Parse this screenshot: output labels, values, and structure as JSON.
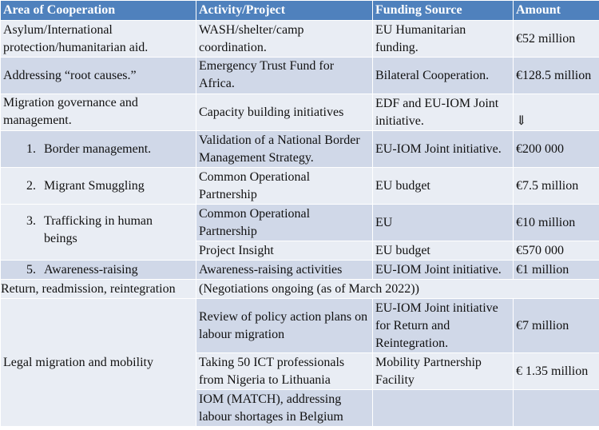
{
  "table": {
    "headers": [
      "Area of Cooperation",
      "Activity/Project",
      "Funding Source",
      "Amount"
    ],
    "rows": [
      {
        "area": "Asylum/International protection/humanitarian aid.",
        "activity": "WASH/shelter/camp coordination.",
        "funding": "EU Humanitarian funding.",
        "amount": "€52 million"
      },
      {
        "area": "Addressing “root causes.”",
        "activity": "Emergency Trust Fund for Africa.",
        "funding": "Bilateral Cooperation.",
        "amount": "€128.5 million"
      },
      {
        "area": "Migration governance and management.",
        "activity": "Capacity building initiatives",
        "funding": "EDF and EU-IOM Joint initiative.",
        "amount": "⇓"
      },
      {
        "num": "1.",
        "area": "Border management.",
        "activity": "Validation of a National Border Management Strategy.",
        "funding": "EU-IOM Joint initiative.",
        "amount": "€200 000"
      },
      {
        "num": "2.",
        "area": "Migrant Smuggling",
        "activity": "Common Operational Partnership",
        "funding": "EU budget",
        "amount": "€7.5 million"
      },
      {
        "num": "3.",
        "area": "Trafficking in human beings",
        "activity": "Common Operational Partnership",
        "funding": "EU",
        "amount": "€10 million"
      },
      {
        "activity": "Project Insight",
        "funding": "EU budget",
        "amount": "€570 000"
      },
      {
        "num": "5.",
        "area": "Awareness-raising",
        "activity": "Awareness-raising activities",
        "funding": "EU-IOM Joint initiative.",
        "amount": "€1 million"
      },
      {
        "area": "Return, readmission, reintegration",
        "activity": "(Negotiations ongoing (as of March 2022))"
      },
      {
        "area": "Legal migration and mobility",
        "activity": "Review of policy action plans on labour migration",
        "funding": "EU-IOM Joint initiative for Return and Reintegration.",
        "amount": "€7 million"
      },
      {
        "activity": "Taking 50 ICT professionals from Nigeria to Lithuania",
        "funding": "Mobility Partnership Facility",
        "amount": "€ 1.35 million"
      },
      {
        "activity": "IOM (MATCH), addressing labour shortages in Belgium",
        "funding": "",
        "amount": ""
      }
    ]
  }
}
